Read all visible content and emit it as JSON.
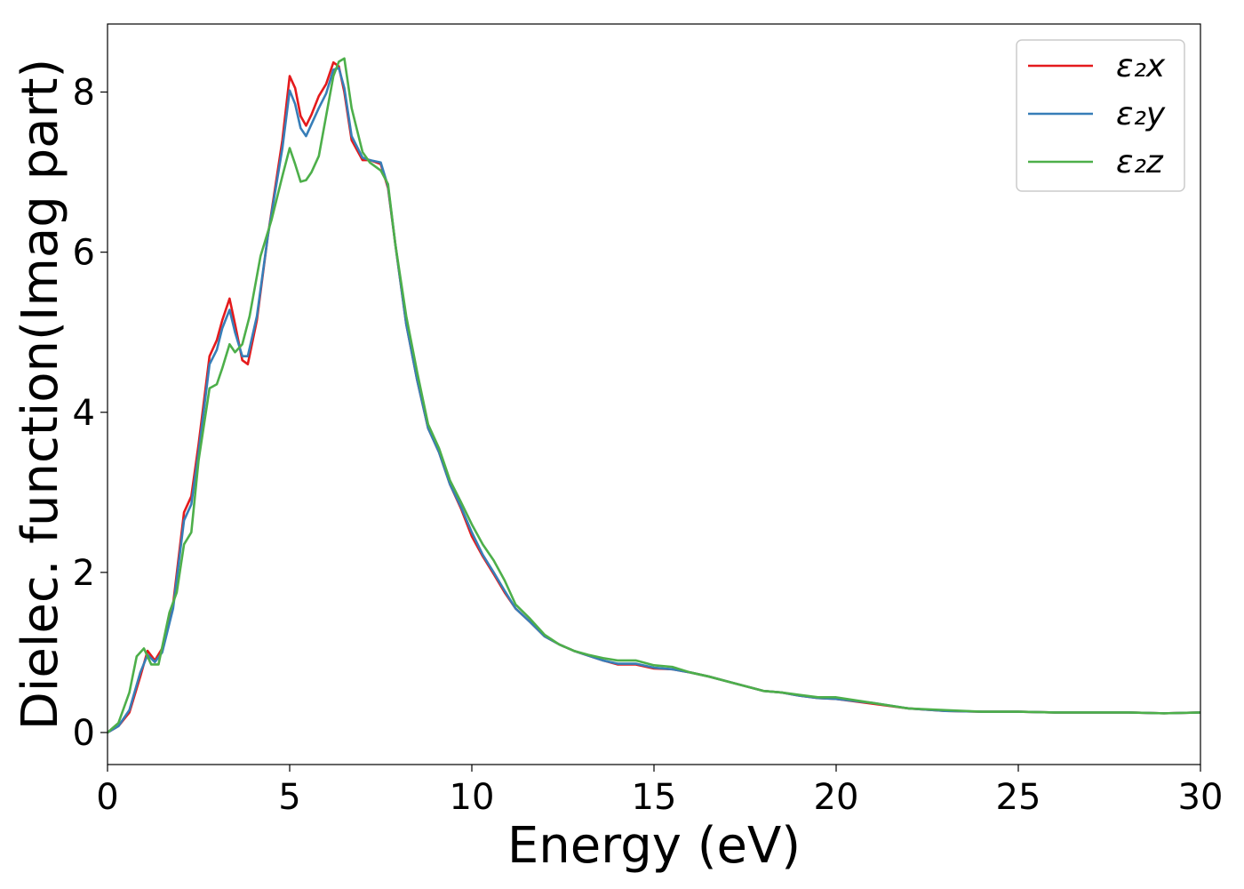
{
  "chart_data": {
    "type": "line",
    "title": "",
    "xlabel": "Energy (eV)",
    "ylabel": "Dielec. function(Imag part)",
    "xlim": [
      0,
      30
    ],
    "ylim": [
      -0.4,
      8.85
    ],
    "xticks": [
      0,
      5,
      10,
      15,
      20,
      25,
      30
    ],
    "yticks": [
      0,
      2,
      4,
      6,
      8
    ],
    "grid": false,
    "legend_position": "top-right",
    "series": [
      {
        "name": "ε₂x",
        "color": "#e41a1c",
        "x": [
          0,
          0.3,
          0.6,
          0.9,
          1.1,
          1.3,
          1.5,
          1.8,
          2.1,
          2.3,
          2.5,
          2.8,
          3.0,
          3.15,
          3.35,
          3.5,
          3.7,
          3.85,
          4.1,
          4.4,
          4.8,
          5.0,
          5.15,
          5.3,
          5.45,
          5.6,
          5.8,
          6.0,
          6.2,
          6.35,
          6.5,
          6.7,
          7.0,
          7.2,
          7.5,
          7.7,
          7.9,
          8.2,
          8.5,
          8.8,
          9.1,
          9.4,
          9.7,
          10.0,
          10.3,
          10.6,
          10.9,
          11.2,
          11.6,
          12.0,
          12.4,
          12.8,
          13.2,
          13.6,
          14.0,
          14.5,
          15.0,
          15.5,
          16.0,
          16.5,
          17.0,
          17.5,
          18.0,
          18.5,
          19.0,
          19.5,
          20.0,
          21.0,
          22.0,
          23.0,
          24.0,
          25.0,
          26.0,
          27.0,
          28.0,
          29.0,
          30.0
        ],
        "y": [
          0.0,
          0.08,
          0.25,
          0.7,
          1.02,
          0.9,
          1.05,
          1.6,
          2.75,
          2.95,
          3.6,
          4.7,
          4.9,
          5.15,
          5.42,
          5.1,
          4.65,
          4.6,
          5.15,
          6.2,
          7.4,
          8.2,
          8.05,
          7.7,
          7.58,
          7.72,
          7.95,
          8.1,
          8.37,
          8.32,
          8.0,
          7.4,
          7.15,
          7.15,
          7.1,
          6.8,
          6.1,
          5.1,
          4.4,
          3.8,
          3.5,
          3.1,
          2.8,
          2.45,
          2.2,
          1.98,
          1.75,
          1.55,
          1.38,
          1.2,
          1.1,
          1.02,
          0.96,
          0.9,
          0.85,
          0.85,
          0.8,
          0.79,
          0.75,
          0.7,
          0.64,
          0.58,
          0.52,
          0.5,
          0.46,
          0.43,
          0.42,
          0.36,
          0.3,
          0.27,
          0.26,
          0.26,
          0.25,
          0.25,
          0.25,
          0.24,
          0.25
        ]
      },
      {
        "name": "ε₂y",
        "color": "#377eb8",
        "x": [
          0,
          0.3,
          0.6,
          0.9,
          1.1,
          1.3,
          1.5,
          1.8,
          2.1,
          2.3,
          2.5,
          2.8,
          3.0,
          3.15,
          3.35,
          3.5,
          3.7,
          3.85,
          4.1,
          4.4,
          4.8,
          5.0,
          5.15,
          5.3,
          5.45,
          5.6,
          5.8,
          6.0,
          6.2,
          6.35,
          6.5,
          6.7,
          7.0,
          7.2,
          7.5,
          7.7,
          7.9,
          8.2,
          8.5,
          8.8,
          9.1,
          9.4,
          9.7,
          10.0,
          10.3,
          10.6,
          10.9,
          11.2,
          11.6,
          12.0,
          12.4,
          12.8,
          13.2,
          13.6,
          14.0,
          14.5,
          15.0,
          15.5,
          16.0,
          16.5,
          17.0,
          17.5,
          18.0,
          18.5,
          19.0,
          19.5,
          20.0,
          21.0,
          22.0,
          23.0,
          24.0,
          25.0,
          26.0,
          27.0,
          28.0,
          29.0,
          30.0
        ],
        "y": [
          0.0,
          0.08,
          0.28,
          0.75,
          0.97,
          0.88,
          1.0,
          1.55,
          2.65,
          2.85,
          3.5,
          4.6,
          4.78,
          5.05,
          5.28,
          5.0,
          4.7,
          4.7,
          5.2,
          6.2,
          7.3,
          8.02,
          7.85,
          7.55,
          7.45,
          7.6,
          7.8,
          7.98,
          8.28,
          8.3,
          8.05,
          7.45,
          7.18,
          7.15,
          7.12,
          6.82,
          6.1,
          5.1,
          4.4,
          3.8,
          3.5,
          3.1,
          2.82,
          2.5,
          2.22,
          2.0,
          1.77,
          1.55,
          1.38,
          1.2,
          1.1,
          1.02,
          0.96,
          0.9,
          0.86,
          0.86,
          0.81,
          0.79,
          0.75,
          0.7,
          0.64,
          0.58,
          0.52,
          0.5,
          0.46,
          0.43,
          0.42,
          0.37,
          0.3,
          0.27,
          0.26,
          0.26,
          0.25,
          0.25,
          0.25,
          0.24,
          0.25
        ]
      },
      {
        "name": "ε₂z",
        "color": "#4daf4a",
        "x": [
          0,
          0.3,
          0.6,
          0.8,
          1.0,
          1.2,
          1.4,
          1.7,
          1.9,
          2.1,
          2.3,
          2.5,
          2.8,
          3.0,
          3.15,
          3.35,
          3.5,
          3.7,
          3.9,
          4.2,
          4.5,
          4.8,
          5.0,
          5.15,
          5.3,
          5.45,
          5.6,
          5.8,
          6.0,
          6.2,
          6.35,
          6.5,
          6.7,
          7.0,
          7.2,
          7.5,
          7.7,
          7.9,
          8.2,
          8.5,
          8.8,
          9.1,
          9.4,
          9.7,
          10.0,
          10.3,
          10.6,
          10.9,
          11.2,
          11.6,
          12.0,
          12.4,
          12.8,
          13.2,
          13.6,
          14.0,
          14.5,
          15.0,
          15.5,
          16.0,
          16.5,
          17.0,
          17.5,
          18.0,
          18.5,
          19.0,
          19.5,
          20.0,
          21.0,
          22.0,
          23.0,
          24.0,
          25.0,
          26.0,
          27.0,
          28.0,
          29.0,
          30.0
        ],
        "y": [
          0.0,
          0.12,
          0.5,
          0.95,
          1.05,
          0.85,
          0.85,
          1.5,
          1.75,
          2.35,
          2.5,
          3.4,
          4.3,
          4.35,
          4.55,
          4.85,
          4.75,
          4.85,
          5.2,
          5.95,
          6.4,
          6.95,
          7.3,
          7.1,
          6.88,
          6.9,
          7.0,
          7.2,
          7.7,
          8.2,
          8.38,
          8.42,
          7.8,
          7.25,
          7.12,
          7.02,
          6.85,
          6.1,
          5.2,
          4.5,
          3.85,
          3.55,
          3.15,
          2.88,
          2.6,
          2.35,
          2.15,
          1.9,
          1.6,
          1.42,
          1.22,
          1.1,
          1.02,
          0.97,
          0.93,
          0.9,
          0.9,
          0.84,
          0.82,
          0.75,
          0.7,
          0.64,
          0.58,
          0.52,
          0.5,
          0.47,
          0.44,
          0.44,
          0.37,
          0.3,
          0.28,
          0.26,
          0.26,
          0.25,
          0.25,
          0.25,
          0.24,
          0.25
        ]
      }
    ]
  }
}
